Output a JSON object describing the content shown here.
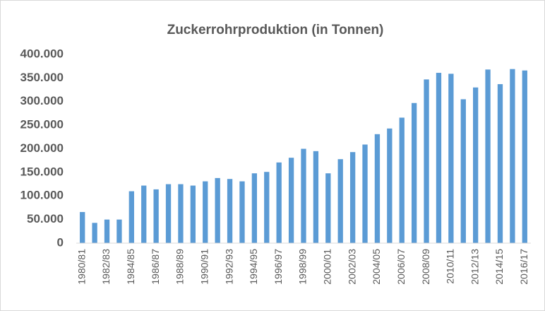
{
  "chart_data": {
    "type": "bar",
    "title": "Zuckerrohrproduktion (in Tonnen)",
    "categories": [
      "1980/81",
      null,
      "1982/83",
      null,
      "1984/85",
      null,
      "1986/87",
      null,
      "1988/89",
      null,
      "1990/91",
      null,
      "1992/93",
      null,
      "1994/95",
      null,
      "1996/97",
      null,
      "1998/99",
      null,
      "2000/01",
      null,
      "2002/03",
      null,
      "2004/05",
      null,
      "2006/07",
      null,
      "2008/09",
      null,
      "2010/11",
      null,
      "2012/13",
      null,
      "2014/15",
      null,
      "2016/17"
    ],
    "values": [
      66000,
      43000,
      50000,
      50000,
      110000,
      122000,
      114000,
      125000,
      125000,
      122000,
      131000,
      138000,
      136000,
      131000,
      148000,
      151000,
      171000,
      181000,
      200000,
      195000,
      148000,
      178000,
      193000,
      209000,
      231000,
      243000,
      266000,
      297000,
      347000,
      361000,
      359000,
      305000,
      330000,
      368000,
      337000,
      369000,
      366000
    ],
    "color": "#5b9bd5",
    "ylim": [
      0,
      400000
    ],
    "yticks": [
      0,
      {
        "value": 50000,
        "label": "50.000"
      },
      {
        "value": 100000,
        "label": "100.000"
      },
      {
        "value": 150000,
        "label": "150.000"
      },
      {
        "value": 200000,
        "label": "200.000"
      },
      {
        "value": 250000,
        "label": "250.000"
      },
      {
        "value": 300000,
        "label": "300.000"
      },
      {
        "value": 350000,
        "label": "350.000"
      },
      {
        "value": 400000,
        "label": "400.000"
      }
    ],
    "grid": false
  }
}
